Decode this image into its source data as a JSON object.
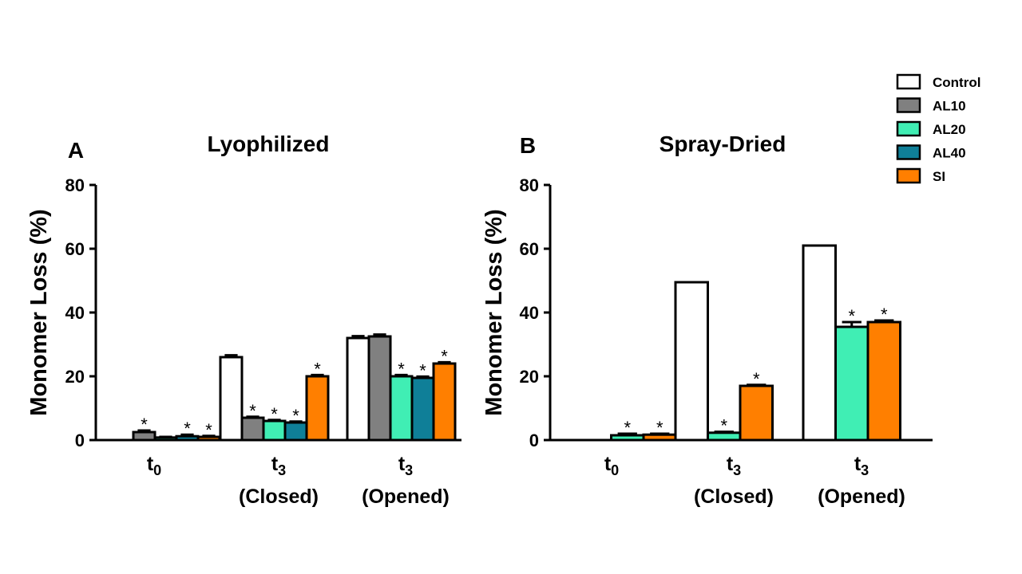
{
  "colors": {
    "Control": "#ffffff",
    "AL10": "#808080",
    "AL20": "#40eeb4",
    "AL40": "#0f7f98",
    "SI": "#ff7f00",
    "outline": "#000000"
  },
  "legend": {
    "placement": "top-right",
    "entries": [
      "Control",
      "AL10",
      "AL20",
      "AL40",
      "SI"
    ]
  },
  "chart_data": [
    {
      "type": "bar",
      "panel_label": "A",
      "title": "Lyophilized",
      "ylabel": "Monomer Loss (%)",
      "xlabel": "",
      "ylim": [
        0,
        80
      ],
      "yticks": [
        "0",
        "20",
        "40",
        "60",
        "80"
      ],
      "grid": false,
      "categories": [
        {
          "main": "t",
          "sub": "0",
          "extra": ""
        },
        {
          "main": "t",
          "sub": "3",
          "extra": "(Closed)"
        },
        {
          "main": "t",
          "sub": "3",
          "extra": "(Opened)"
        }
      ],
      "series": [
        {
          "name": "Control",
          "values": [
            null,
            26,
            32
          ],
          "errors": [
            null,
            0.6,
            0.6
          ],
          "sig": [
            false,
            false,
            false
          ]
        },
        {
          "name": "AL10",
          "values": [
            2.5,
            7,
            32.5
          ],
          "errors": [
            0.5,
            0.3,
            0.6
          ],
          "sig": [
            true,
            true,
            false
          ]
        },
        {
          "name": "AL20",
          "values": [
            0.8,
            6,
            20
          ],
          "errors": [
            0.2,
            0.3,
            0.4
          ],
          "sig": [
            false,
            true,
            true
          ]
        },
        {
          "name": "AL40",
          "values": [
            1.2,
            5.5,
            19.5
          ],
          "errors": [
            0.5,
            0.3,
            0.4
          ],
          "sig": [
            true,
            true,
            true
          ]
        },
        {
          "name": "SI",
          "values": [
            1,
            20,
            24
          ],
          "errors": [
            0.3,
            0.4,
            0.4
          ],
          "sig": [
            true,
            true,
            true
          ]
        }
      ],
      "sig_marker": "*"
    },
    {
      "type": "bar",
      "panel_label": "B",
      "title": "Spray-Dried",
      "ylabel": "Monomer Loss (%)",
      "xlabel": "",
      "ylim": [
        0,
        80
      ],
      "yticks": [
        "0",
        "20",
        "40",
        "60",
        "80"
      ],
      "grid": false,
      "categories": [
        {
          "main": "t",
          "sub": "0",
          "extra": ""
        },
        {
          "main": "t",
          "sub": "3",
          "extra": "(Closed)"
        },
        {
          "main": "t",
          "sub": "3",
          "extra": "(Opened)"
        }
      ],
      "series": [
        {
          "name": "Control",
          "values": [
            null,
            49.5,
            61
          ],
          "errors": [
            null,
            0,
            0
          ],
          "sig": [
            false,
            false,
            false
          ]
        },
        {
          "name": "AL20",
          "values": [
            1.5,
            2.3,
            35.5
          ],
          "errors": [
            0.5,
            0.3,
            1.5
          ],
          "sig": [
            true,
            true,
            true
          ]
        },
        {
          "name": "SI",
          "values": [
            1.7,
            17,
            37
          ],
          "errors": [
            0.3,
            0.3,
            0.5
          ],
          "sig": [
            true,
            true,
            true
          ]
        }
      ],
      "sig_marker": "*"
    }
  ]
}
